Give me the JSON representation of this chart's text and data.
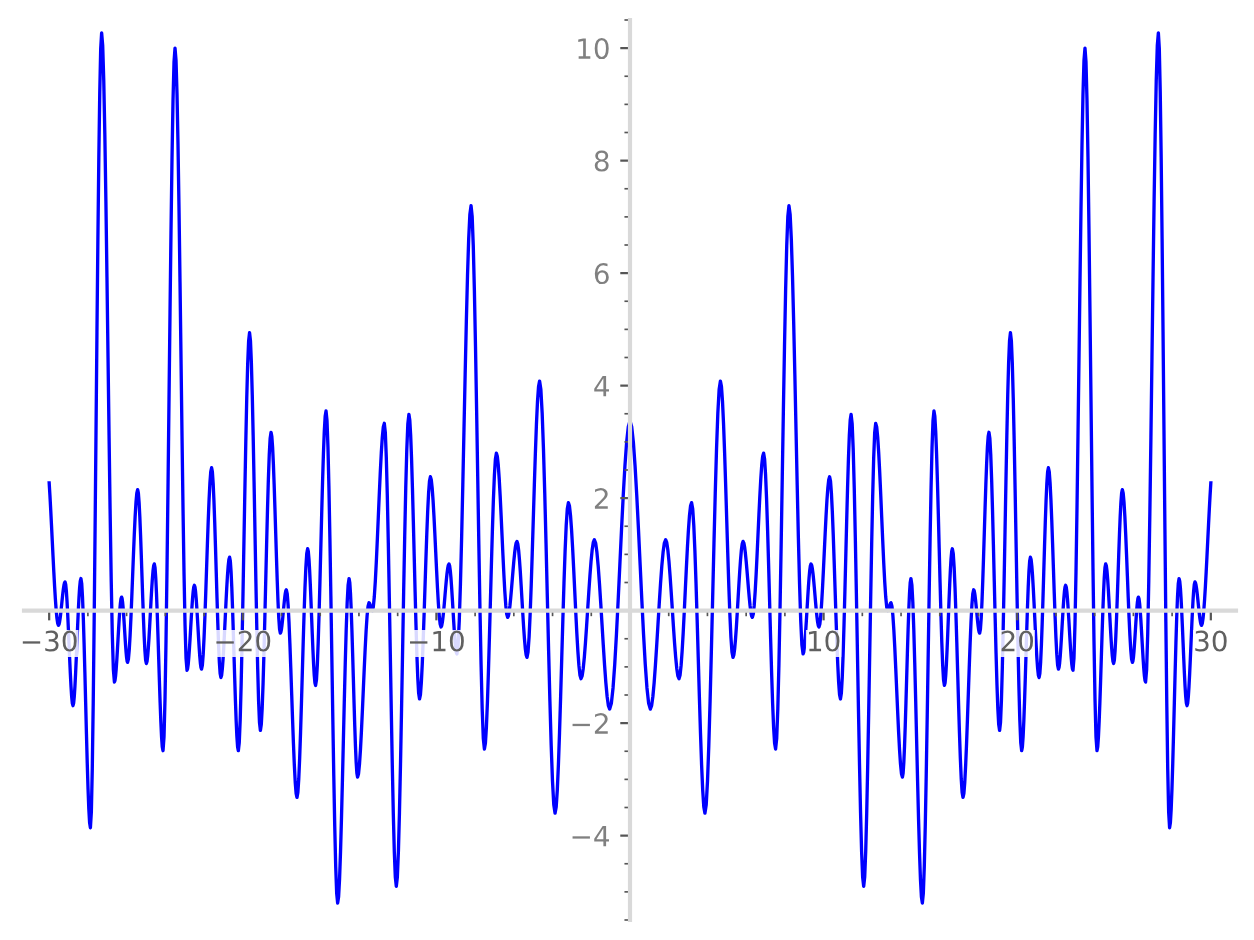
{
  "chart_data": {
    "type": "line",
    "x": [
      -30.0,
      -29.52,
      -29.18,
      -28.77,
      -28.36,
      -27.87,
      -27.29,
      -26.63,
      -26.26,
      -25.95,
      -25.43,
      -24.98,
      -24.57,
      -24.12,
      -23.5,
      -22.88,
      -22.5,
      -22.13,
      -21.61,
      -21.13,
      -20.68,
      -20.23,
      -19.65,
      -19.09,
      -18.54,
      -18.06,
      -17.75,
      -17.2,
      -16.65,
      -16.24,
      -15.7,
      -15.1,
      -14.51,
      -14.07,
      -13.48,
      -13.31,
      -12.69,
      -12.07,
      -11.42,
      -10.87,
      -10.31,
      -9.76,
      -9.35,
      -8.94,
      -8.21,
      -7.52,
      -6.9,
      -6.32,
      -5.84,
      -5.32,
      -4.67,
      -3.87,
      -3.18,
      -2.53,
      -1.84,
      -1.05,
      0.0,
      1.05,
      1.84,
      2.53,
      3.18,
      3.87,
      4.67,
      5.32,
      5.84,
      6.32,
      6.9,
      7.52,
      8.21,
      8.94,
      9.35,
      9.76,
      10.31,
      10.87,
      11.42,
      12.07,
      12.69,
      13.31,
      13.48,
      14.07,
      14.51,
      15.1,
      15.7,
      16.24,
      16.65,
      17.2,
      17.75,
      18.06,
      18.54,
      19.09,
      19.65,
      20.23,
      20.68,
      21.13,
      21.61,
      22.13,
      22.5,
      22.88,
      23.5,
      24.12,
      24.57,
      24.98,
      25.43,
      25.95,
      26.26,
      26.63,
      27.29,
      27.87,
      28.36,
      28.77,
      29.18,
      29.52,
      30.0
    ],
    "series": [
      {
        "color": "#0000ff",
        "values": [
          2.27,
          -0.26,
          0.51,
          -1.69,
          0.57,
          -3.86,
          10.27,
          -1.27,
          0.24,
          -0.92,
          2.15,
          -0.94,
          0.83,
          -2.49,
          10.0,
          -1.06,
          0.45,
          -1.04,
          2.54,
          -1.19,
          0.95,
          -2.49,
          4.94,
          -2.13,
          3.17,
          -0.4,
          0.37,
          -3.32,
          1.1,
          -1.33,
          3.55,
          -5.2,
          0.57,
          -2.96,
          0.14,
          0.0,
          3.33,
          -4.9,
          3.49,
          -1.57,
          2.38,
          -0.29,
          0.83,
          -0.77,
          7.2,
          -2.46,
          2.8,
          -0.12,
          1.23,
          -0.83,
          4.08,
          -3.6,
          1.92,
          -1.21,
          1.26,
          -1.75,
          3.37,
          -1.75,
          1.26,
          -1.21,
          1.92,
          -3.6,
          4.08,
          -0.83,
          1.23,
          -0.12,
          2.8,
          -2.46,
          7.2,
          -0.77,
          0.83,
          -0.29,
          2.38,
          -1.57,
          3.49,
          -4.9,
          3.33,
          0.0,
          0.14,
          -2.96,
          0.57,
          -5.2,
          3.55,
          -1.33,
          1.1,
          -3.32,
          0.37,
          -0.4,
          3.17,
          -2.13,
          4.94,
          -2.49,
          0.95,
          -1.19,
          2.54,
          -1.04,
          0.45,
          -1.06,
          10.0,
          -2.49,
          0.83,
          -0.94,
          2.15,
          -0.92,
          0.24,
          -1.27,
          10.27,
          -3.86,
          0.57,
          -1.69,
          0.51,
          -0.26,
          2.27
        ]
      }
    ],
    "xlim": [
      -31.3,
      31.3
    ],
    "ylim": [
      -5.5,
      10.5
    ],
    "xticks": [
      {
        "value": -30,
        "label": "−30"
      },
      {
        "value": -20,
        "label": "−20"
      },
      {
        "value": -10,
        "label": "−10"
      },
      10,
      20,
      30
    ],
    "yticks": [
      {
        "value": -4,
        "label": "−4"
      },
      {
        "value": -2,
        "label": "−2"
      },
      2,
      4,
      6,
      8,
      10
    ],
    "grid": false,
    "legend": false,
    "marker": "none",
    "line_style": "solid"
  }
}
